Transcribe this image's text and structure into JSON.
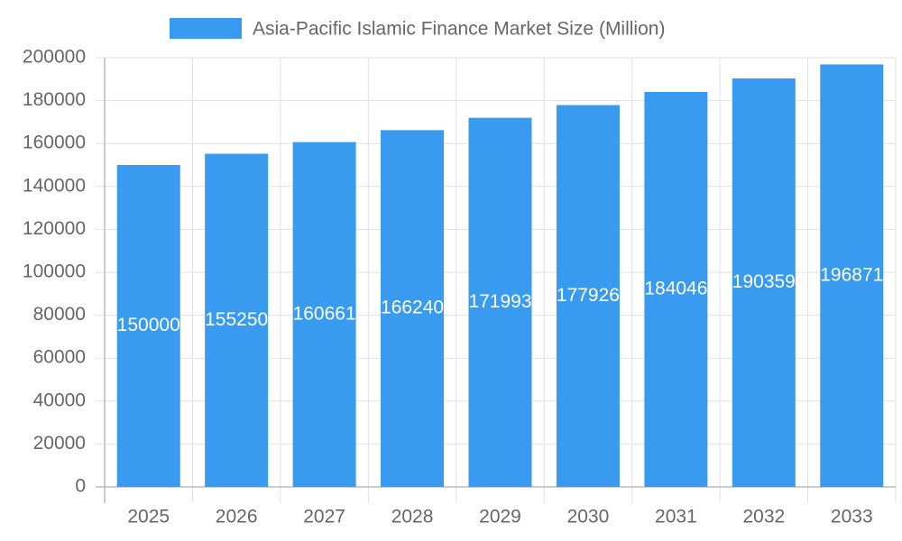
{
  "chart_data": {
    "type": "bar",
    "categories": [
      "2025",
      "2026",
      "2027",
      "2028",
      "2029",
      "2030",
      "2031",
      "2032",
      "2033"
    ],
    "series": [
      {
        "name": "Asia-Pacific Islamic Finance Market Size (Million)",
        "color": "#389bf0",
        "values": [
          150000,
          155250,
          160661,
          166240,
          171993,
          177926,
          184046,
          190359,
          196871
        ]
      }
    ],
    "ylim": [
      0,
      200000
    ],
    "yticks": [
      0,
      20000,
      40000,
      60000,
      80000,
      100000,
      120000,
      140000,
      160000,
      180000,
      200000
    ],
    "grid": true,
    "legend": "top",
    "data_labels": true
  }
}
